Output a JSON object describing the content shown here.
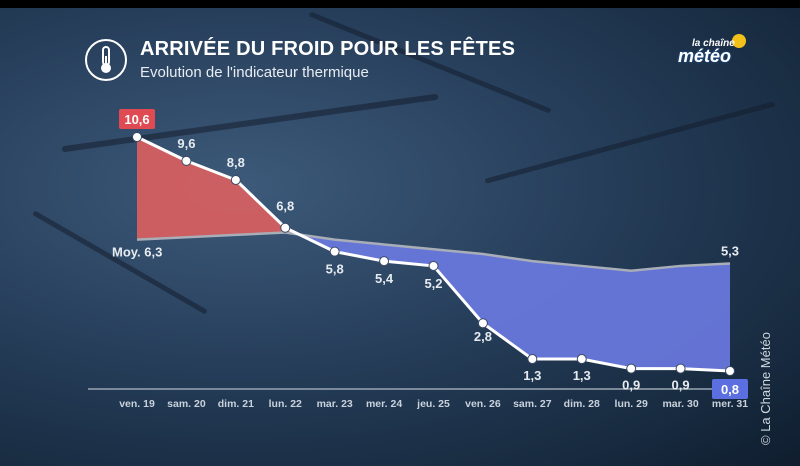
{
  "header": {
    "title": "ARRIVÉE DU FROID POUR LES FÊTES",
    "subtitle": "Evolution de l'indicateur thermique",
    "icon": "thermometer-icon"
  },
  "logo": {
    "small": "la chaîne",
    "big": "météo"
  },
  "copyright": "© La Chaîne Météo",
  "colors": {
    "above": "#d9605f",
    "below": "#6a7ae0",
    "average_line": "#a8adb8",
    "line": "#ffffff",
    "highlight_red": "#e04a52",
    "highlight_blue": "#5b6fe0"
  },
  "chart_data": {
    "type": "line",
    "title": "ARRIVÉE DU FROID POUR LES FÊTES",
    "subtitle": "Evolution de l'indicateur thermique",
    "categories": [
      "ven. 19",
      "sam. 20",
      "dim. 21",
      "lun. 22",
      "mar. 23",
      "mer. 24",
      "jeu. 25",
      "ven. 26",
      "sam. 27",
      "dim. 28",
      "lun. 29",
      "mar. 30",
      "mer. 31"
    ],
    "series": [
      {
        "name": "Indicateur thermique",
        "values": [
          10.6,
          9.6,
          8.8,
          6.8,
          5.8,
          5.4,
          5.2,
          2.8,
          1.3,
          1.3,
          0.9,
          0.9,
          0.8
        ],
        "labels": [
          "10,6",
          "9,6",
          "8,8",
          "6,8",
          "5,8",
          "5,4",
          "5,2",
          "2,8",
          "1,3",
          "1,3",
          "0,9",
          "0,9",
          "0,8"
        ]
      },
      {
        "name": "Moyenne",
        "values": [
          6.3,
          6.4,
          6.5,
          6.6,
          6.3,
          6.1,
          5.9,
          5.7,
          5.4,
          5.2,
          5.0,
          5.2,
          5.3
        ]
      }
    ],
    "average_start_label": "Moy. 6,3",
    "average_end_label": "5,3",
    "ylim": [
      0,
      12
    ],
    "xlabel": "",
    "ylabel": "",
    "grid": false
  }
}
